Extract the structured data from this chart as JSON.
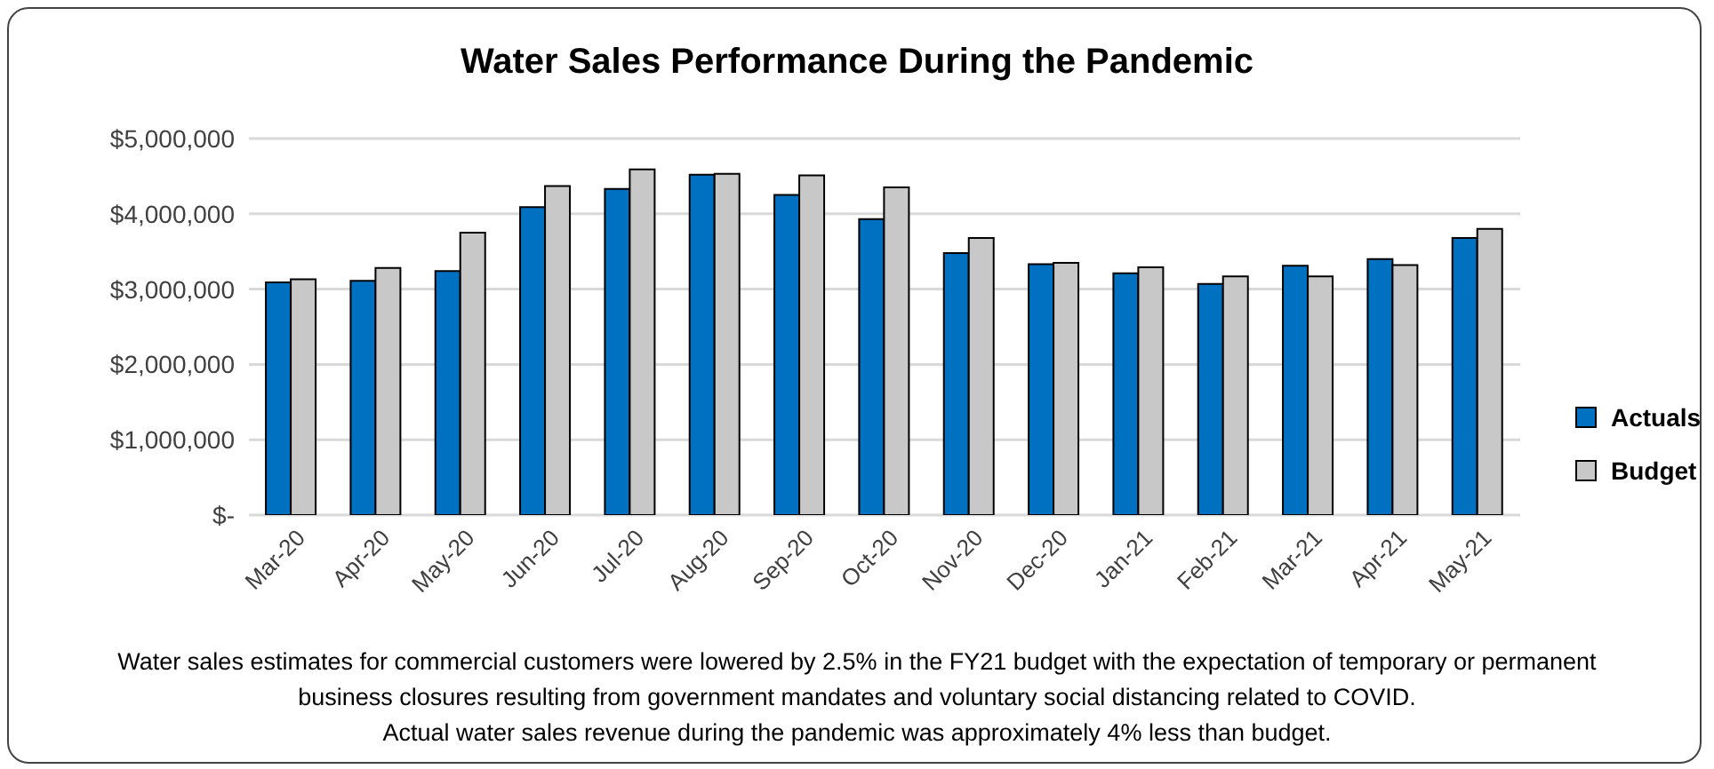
{
  "chart_data": {
    "type": "bar",
    "title": "Water Sales Performance During the Pandemic",
    "categories": [
      "Mar-20",
      "Apr-20",
      "May-20",
      "Jun-20",
      "Jul-20",
      "Aug-20",
      "Sep-20",
      "Oct-20",
      "Nov-20",
      "Dec-20",
      "Jan-21",
      "Feb-21",
      "Mar-21",
      "Apr-21",
      "May-21"
    ],
    "series": [
      {
        "name": "Actuals",
        "color": "#0070c0",
        "values": [
          3090000,
          3110000,
          3240000,
          4090000,
          4330000,
          4520000,
          4250000,
          3930000,
          3480000,
          3330000,
          3210000,
          3070000,
          3310000,
          3400000,
          3680000
        ]
      },
      {
        "name": "Budget",
        "color": "#c8c8c8",
        "values": [
          3130000,
          3280000,
          3750000,
          4370000,
          4590000,
          4530000,
          4510000,
          4350000,
          3680000,
          3350000,
          3290000,
          3170000,
          3170000,
          3320000,
          3800000
        ]
      }
    ],
    "ylim": [
      0,
      5000000
    ],
    "yticks": [
      {
        "value": 0,
        "label": "$-"
      },
      {
        "value": 1000000,
        "label": "$1,000,000"
      },
      {
        "value": 2000000,
        "label": "$2,000,000"
      },
      {
        "value": 3000000,
        "label": "$3,000,000"
      },
      {
        "value": 4000000,
        "label": "$4,000,000"
      },
      {
        "value": 5000000,
        "label": "$5,000,000"
      }
    ],
    "grid": "y",
    "legend": "right",
    "annotations": [
      "Water sales estimates for commercial customers were lowered by 2.5% in the FY21 budget with the expectation of temporary or permanent business closures resulting from government mandates and voluntary social distancing related to COVID.",
      "Actual water sales revenue during the pandemic was approximately 4% less than budget."
    ]
  }
}
